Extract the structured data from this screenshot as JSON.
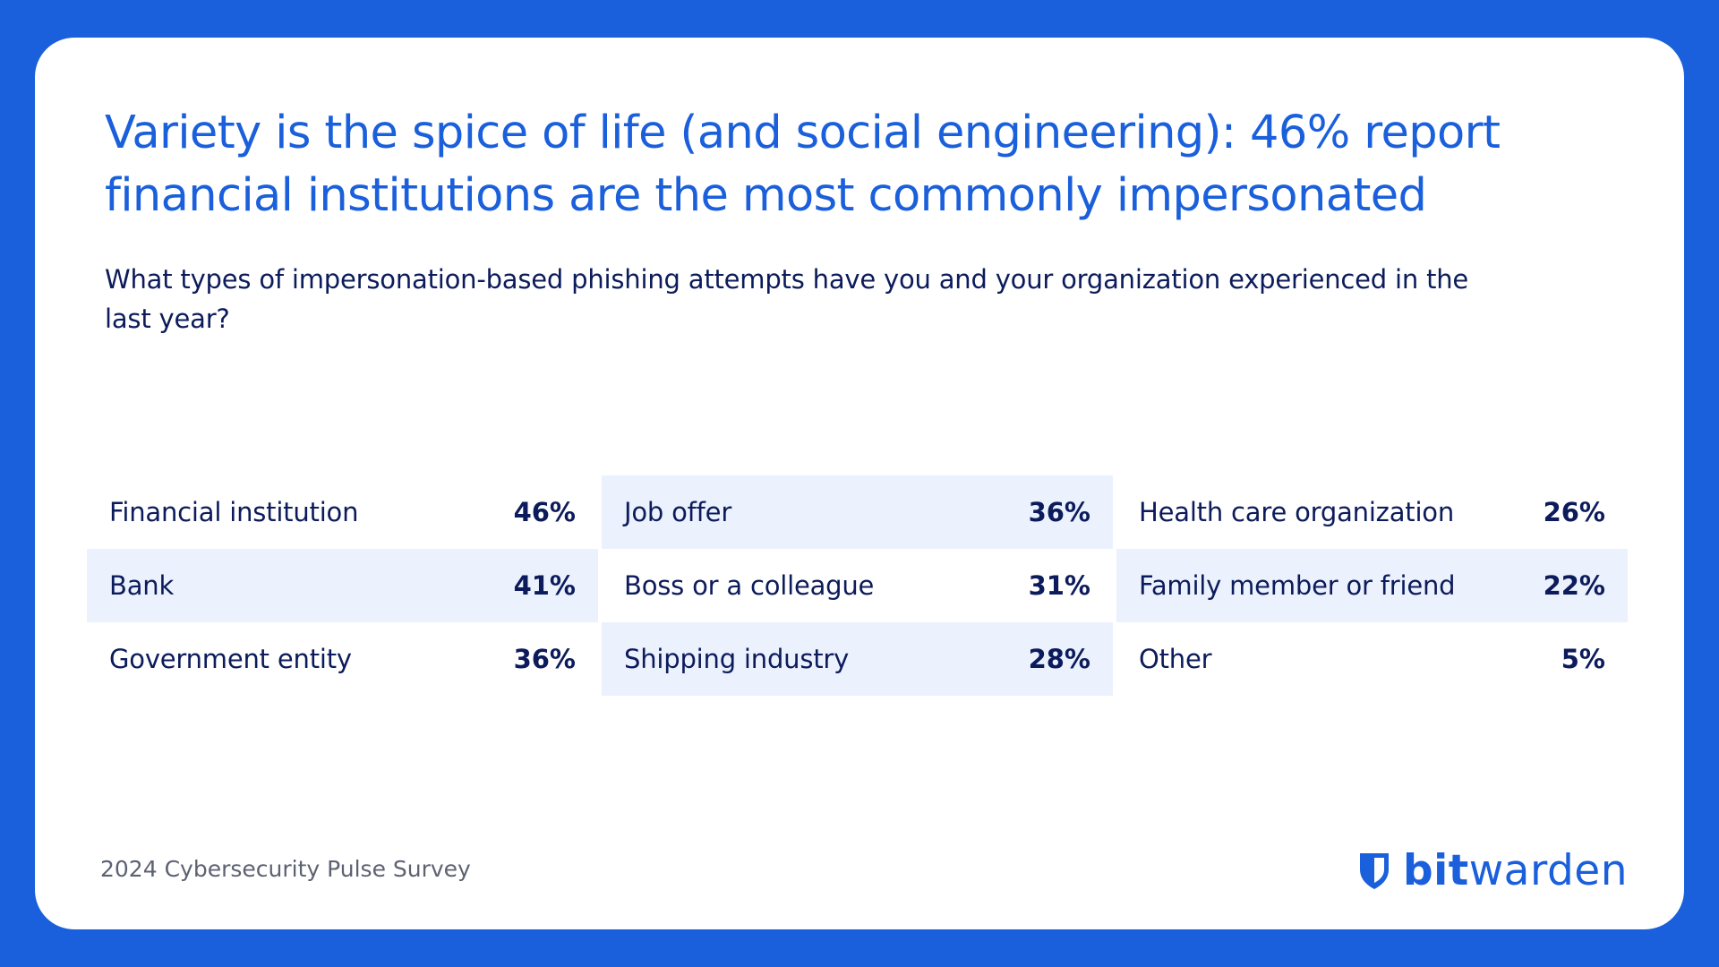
{
  "title": "Variety is the spice of life (and social engineering): 46% report financial institutions are the most commonly impersonated",
  "question": "What types of impersonation-based phishing attempts have you and your organization experienced in the last year?",
  "footer": "2024 Cybersecurity Pulse Survey",
  "logo": {
    "bold": "bit",
    "light": "warden",
    "icon": "bitwarden-shield-icon"
  },
  "colors": {
    "background": "#1a5fdb",
    "accent": "#1a5fdb",
    "text": "#0c1b5b",
    "row_shade": "#ebf1fd",
    "footer_text": "#5d6272"
  },
  "chart_data": {
    "type": "table",
    "columns": [
      {
        "rows": [
          {
            "label": "Financial institution",
            "value_text": "46%",
            "value": 46,
            "shaded": false
          },
          {
            "label": "Bank",
            "value_text": "41%",
            "value": 41,
            "shaded": true
          },
          {
            "label": "Government entity",
            "value_text": "36%",
            "value": 36,
            "shaded": false
          }
        ]
      },
      {
        "rows": [
          {
            "label": "Job offer",
            "value_text": "36%",
            "value": 36,
            "shaded": true
          },
          {
            "label": "Boss or a colleague",
            "value_text": "31%",
            "value": 31,
            "shaded": false
          },
          {
            "label": "Shipping industry",
            "value_text": "28%",
            "value": 28,
            "shaded": true
          }
        ]
      },
      {
        "rows": [
          {
            "label": "Health care organization",
            "value_text": "26%",
            "value": 26,
            "shaded": false
          },
          {
            "label": "Family member or friend",
            "value_text": "22%",
            "value": 22,
            "shaded": true
          },
          {
            "label": "Other",
            "value_text": "5%",
            "value": 5,
            "shaded": false
          }
        ]
      }
    ]
  }
}
